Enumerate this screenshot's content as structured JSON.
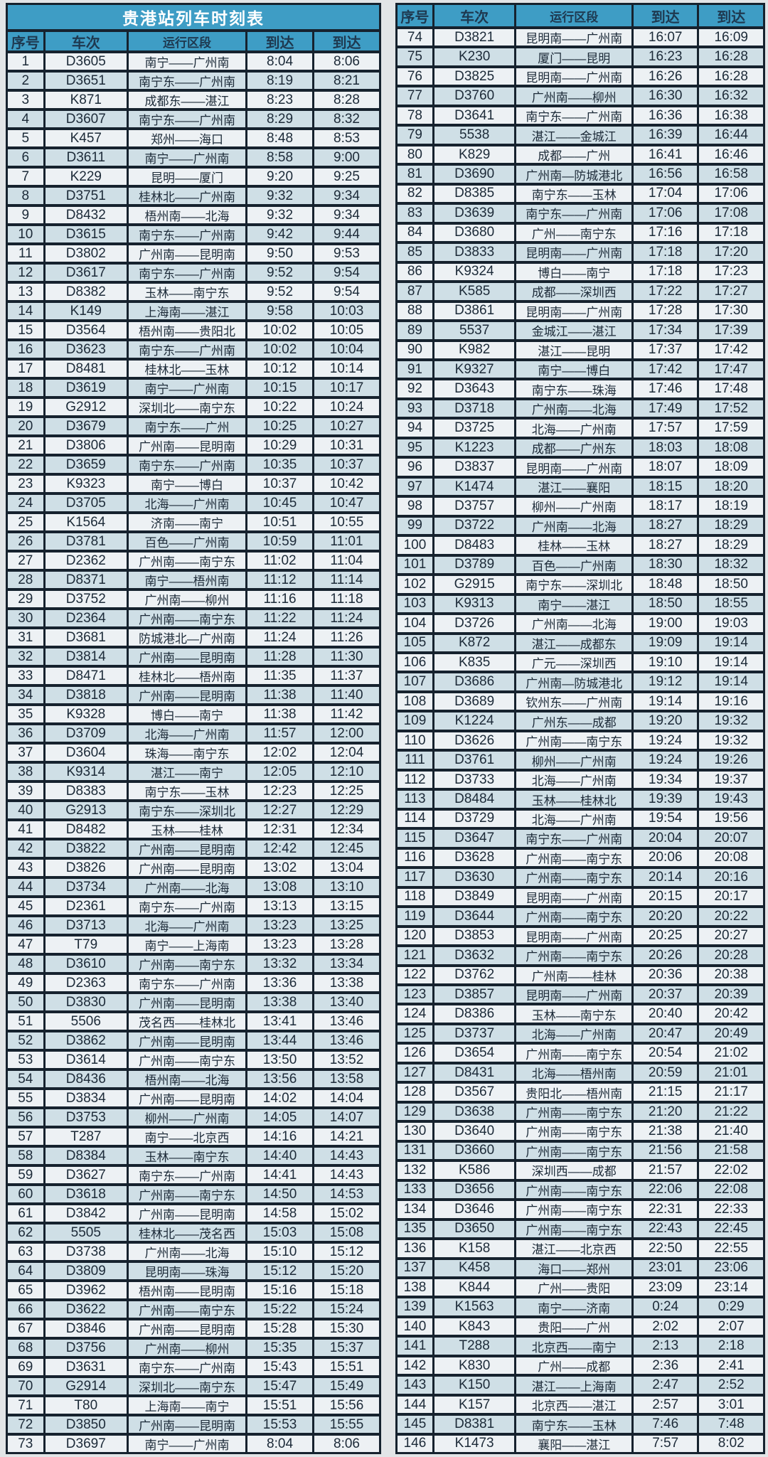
{
  "title": "贵港站列车时刻表",
  "columns": [
    "序号",
    "车次",
    "运行区段",
    "到达",
    "到达"
  ],
  "colors": {
    "header_blue": "#3e9dc5",
    "row_light": "#edf1f4",
    "row_alt": "#cfdfe6",
    "border_dark": "#16222e",
    "text_dark": "#1c2a38",
    "title_text": "#ffffff"
  },
  "left_table": {
    "rows": [
      [
        "1",
        "D3605",
        "南宁——广州南",
        "8:04",
        "8:06"
      ],
      [
        "2",
        "D3651",
        "南宁东——广州南",
        "8:19",
        "8:21"
      ],
      [
        "3",
        "K871",
        "成都东——湛江",
        "8:23",
        "8:28"
      ],
      [
        "4",
        "D3607",
        "南宁东——广州南",
        "8:29",
        "8:32"
      ],
      [
        "5",
        "K457",
        "郑州——海口",
        "8:48",
        "8:53"
      ],
      [
        "6",
        "D3611",
        "南宁——广州南",
        "8:58",
        "9:00"
      ],
      [
        "7",
        "K229",
        "昆明——厦门",
        "9:20",
        "9:25"
      ],
      [
        "8",
        "D3751",
        "桂林北——广州南",
        "9:32",
        "9:34"
      ],
      [
        "9",
        "D8432",
        "梧州南——北海",
        "9:32",
        "9:34"
      ],
      [
        "10",
        "D3615",
        "南宁东——广州南",
        "9:42",
        "9:44"
      ],
      [
        "11",
        "D3802",
        "广州南——昆明南",
        "9:50",
        "9:53"
      ],
      [
        "12",
        "D3617",
        "南宁东——广州南",
        "9:52",
        "9:54"
      ],
      [
        "13",
        "D8382",
        "玉林——南宁东",
        "9:52",
        "9:54"
      ],
      [
        "14",
        "K149",
        "上海南——湛江",
        "9:58",
        "10:03"
      ],
      [
        "15",
        "D3564",
        "梧州南——贵阳北",
        "10:02",
        "10:05"
      ],
      [
        "16",
        "D3623",
        "南宁东——广州南",
        "10:02",
        "10:04"
      ],
      [
        "17",
        "D8481",
        "桂林北——玉林",
        "10:12",
        "10:14"
      ],
      [
        "18",
        "D3619",
        "南宁——广州南",
        "10:15",
        "10:17"
      ],
      [
        "19",
        "G2912",
        "深圳北——南宁东",
        "10:22",
        "10:24"
      ],
      [
        "20",
        "D3679",
        "南宁东——广州",
        "10:25",
        "10:27"
      ],
      [
        "21",
        "D3806",
        "广州南——昆明南",
        "10:29",
        "10:31"
      ],
      [
        "22",
        "D3659",
        "南宁东——广州南",
        "10:35",
        "10:37"
      ],
      [
        "23",
        "K9323",
        "南宁——博白",
        "10:37",
        "10:42"
      ],
      [
        "24",
        "D3705",
        "北海——广州南",
        "10:45",
        "10:47"
      ],
      [
        "25",
        "K1564",
        "济南——南宁",
        "10:51",
        "10:55"
      ],
      [
        "26",
        "D3781",
        "百色——广州南",
        "10:59",
        "11:01"
      ],
      [
        "27",
        "D2362",
        "广州南——南宁东",
        "11:02",
        "11:04"
      ],
      [
        "28",
        "D8371",
        "南宁——梧州南",
        "11:12",
        "11:14"
      ],
      [
        "29",
        "D3752",
        "广州南——柳州",
        "11:16",
        "11:18"
      ],
      [
        "30",
        "D2364",
        "广州南——南宁东",
        "11:22",
        "11:24"
      ],
      [
        "31",
        "D3681",
        "防城港北—广州南",
        "11:24",
        "11:26"
      ],
      [
        "32",
        "D3814",
        "广州南——昆明南",
        "11:28",
        "11:30"
      ],
      [
        "33",
        "D8471",
        "桂林北——梧州南",
        "11:35",
        "11:37"
      ],
      [
        "34",
        "D3818",
        "广州南——昆明南",
        "11:38",
        "11:40"
      ],
      [
        "35",
        "K9328",
        "博白——南宁",
        "11:38",
        "11:42"
      ],
      [
        "36",
        "D3709",
        "北海——广州南",
        "11:57",
        "12:00"
      ],
      [
        "37",
        "D3604",
        "珠海——南宁东",
        "12:02",
        "12:04"
      ],
      [
        "38",
        "K9314",
        "湛江——南宁",
        "12:05",
        "12:10"
      ],
      [
        "39",
        "D8383",
        "南宁东——玉林",
        "12:23",
        "12:25"
      ],
      [
        "40",
        "G2913",
        "南宁东——深圳北",
        "12:27",
        "12:29"
      ],
      [
        "41",
        "D8482",
        "玉林——桂林",
        "12:31",
        "12:34"
      ],
      [
        "42",
        "D3822",
        "广州南——昆明南",
        "12:42",
        "12:45"
      ],
      [
        "43",
        "D3826",
        "广州南——昆明南",
        "13:02",
        "13:04"
      ],
      [
        "44",
        "D3734",
        "广州南——北海",
        "13:08",
        "13:10"
      ],
      [
        "45",
        "D2361",
        "南宁东——广州南",
        "13:13",
        "13:15"
      ],
      [
        "46",
        "D3713",
        "北海——广州南",
        "13:23",
        "13:25"
      ],
      [
        "47",
        "T79",
        "南宁——上海南",
        "13:23",
        "13:28"
      ],
      [
        "48",
        "D3610",
        "广州南——南宁东",
        "13:32",
        "13:34"
      ],
      [
        "49",
        "D2363",
        "南宁东——广州南",
        "13:36",
        "13:38"
      ],
      [
        "50",
        "D3830",
        "广州南——昆明南",
        "13:38",
        "13:40"
      ],
      [
        "51",
        "5506",
        "茂名西——桂林北",
        "13:41",
        "13:46"
      ],
      [
        "52",
        "D3862",
        "广州南——昆明南",
        "13:44",
        "13:46"
      ],
      [
        "53",
        "D3614",
        "广州南——南宁东",
        "13:50",
        "13:52"
      ],
      [
        "54",
        "D8436",
        "梧州南——北海",
        "13:56",
        "13:58"
      ],
      [
        "55",
        "D3834",
        "广州南——昆明南",
        "14:02",
        "14:04"
      ],
      [
        "56",
        "D3753",
        "柳州——广州南",
        "14:05",
        "14:07"
      ],
      [
        "57",
        "T287",
        "南宁——北京西",
        "14:16",
        "14:21"
      ],
      [
        "58",
        "D8384",
        "玉林——南宁东",
        "14:40",
        "14:43"
      ],
      [
        "59",
        "D3627",
        "南宁东——广州南",
        "14:41",
        "14:43"
      ],
      [
        "60",
        "D3618",
        "广州南——南宁东",
        "14:50",
        "14:53"
      ],
      [
        "61",
        "D3842",
        "广州南——昆明南",
        "14:58",
        "15:02"
      ],
      [
        "62",
        "5505",
        "桂林北——茂名西",
        "15:03",
        "15:08"
      ],
      [
        "63",
        "D3738",
        "广州南——北海",
        "15:10",
        "15:12"
      ],
      [
        "64",
        "D3809",
        "昆明南——珠海",
        "15:12",
        "15:20"
      ],
      [
        "65",
        "D3962",
        "梧州南——昆明南",
        "15:16",
        "15:18"
      ],
      [
        "66",
        "D3622",
        "广州南——南宁东",
        "15:22",
        "15:24"
      ],
      [
        "67",
        "D3846",
        "广州南——昆明南",
        "15:28",
        "15:30"
      ],
      [
        "68",
        "D3756",
        "广州南——柳州",
        "15:35",
        "15:37"
      ],
      [
        "69",
        "D3631",
        "南宁东——广州南",
        "15:43",
        "15:51"
      ],
      [
        "70",
        "G2914",
        "深圳北——南宁东",
        "15:47",
        "15:49"
      ],
      [
        "71",
        "T80",
        "上海南——南宁",
        "15:51",
        "15:56"
      ],
      [
        "72",
        "D3850",
        "广州南——昆明南",
        "15:53",
        "15:55"
      ],
      [
        "73",
        "D3697",
        "南宁——广州南",
        "8:04",
        "8:06"
      ]
    ]
  },
  "right_table": {
    "rows": [
      [
        "74",
        "D3821",
        "昆明南——广州南",
        "16:07",
        "16:09"
      ],
      [
        "75",
        "K230",
        "厦门——昆明",
        "16:23",
        "16:28"
      ],
      [
        "76",
        "D3825",
        "昆明南——广州南",
        "16:26",
        "16:28"
      ],
      [
        "77",
        "D3760",
        "广州南——柳州",
        "16:30",
        "16:32"
      ],
      [
        "78",
        "D3641",
        "南宁东——广州南",
        "16:36",
        "16:38"
      ],
      [
        "79",
        "5538",
        "湛江——金城江",
        "16:39",
        "16:44"
      ],
      [
        "80",
        "K829",
        "成都——广州",
        "16:41",
        "16:46"
      ],
      [
        "81",
        "D3690",
        "广州南—防城港北",
        "16:56",
        "16:58"
      ],
      [
        "82",
        "D8385",
        "南宁东——玉林",
        "17:04",
        "17:06"
      ],
      [
        "83",
        "D3639",
        "南宁东——广州南",
        "17:06",
        "17:08"
      ],
      [
        "84",
        "D3680",
        "广州——南宁东",
        "17:16",
        "17:18"
      ],
      [
        "85",
        "D3833",
        "昆明南——广州南",
        "17:18",
        "17:20"
      ],
      [
        "86",
        "K9324",
        "博白——南宁",
        "17:18",
        "17:23"
      ],
      [
        "87",
        "K585",
        "成都——深圳西",
        "17:22",
        "17:27"
      ],
      [
        "88",
        "D3861",
        "昆明南——广州南",
        "17:28",
        "17:30"
      ],
      [
        "89",
        "5537",
        "金城江——湛江",
        "17:34",
        "17:39"
      ],
      [
        "90",
        "K982",
        "湛江——昆明",
        "17:37",
        "17:42"
      ],
      [
        "91",
        "K9327",
        "南宁——博白",
        "17:42",
        "17:47"
      ],
      [
        "92",
        "D3643",
        "南宁东——珠海",
        "17:46",
        "17:48"
      ],
      [
        "93",
        "D3718",
        "广州南——北海",
        "17:49",
        "17:52"
      ],
      [
        "94",
        "D3725",
        "北海——广州南",
        "17:57",
        "17:59"
      ],
      [
        "95",
        "K1223",
        "成都——广州东",
        "18:03",
        "18:08"
      ],
      [
        "96",
        "D3837",
        "昆明南——广州南",
        "18:07",
        "18:09"
      ],
      [
        "97",
        "K1474",
        "湛江——襄阳",
        "18:15",
        "18:20"
      ],
      [
        "98",
        "D3757",
        "柳州——广州南",
        "18:17",
        "18:19"
      ],
      [
        "99",
        "D3722",
        "广州南——北海",
        "18:27",
        "18:29"
      ],
      [
        "100",
        "D8483",
        "桂林——玉林",
        "18:27",
        "18:29"
      ],
      [
        "101",
        "D3789",
        "百色——广州南",
        "18:30",
        "18:32"
      ],
      [
        "102",
        "G2915",
        "南宁东——深圳北",
        "18:48",
        "18:50"
      ],
      [
        "103",
        "K9313",
        "南宁——湛江",
        "18:50",
        "18:55"
      ],
      [
        "104",
        "D3726",
        "广州南——北海",
        "19:00",
        "19:03"
      ],
      [
        "105",
        "K872",
        "湛江——成都东",
        "19:09",
        "19:14"
      ],
      [
        "106",
        "K835",
        "广元——深圳西",
        "19:10",
        "19:14"
      ],
      [
        "107",
        "D3686",
        "广州南—防城港北",
        "19:12",
        "19:14"
      ],
      [
        "108",
        "D3689",
        "钦州东——广州南",
        "19:14",
        "19:16"
      ],
      [
        "109",
        "K1224",
        "广州东——成都",
        "19:20",
        "19:32"
      ],
      [
        "110",
        "D3626",
        "广州南——南宁东",
        "19:24",
        "19:32"
      ],
      [
        "111",
        "D3761",
        "柳州——广州南",
        "19:24",
        "19:26"
      ],
      [
        "112",
        "D3733",
        "北海——广州南",
        "19:34",
        "19:37"
      ],
      [
        "113",
        "D8484",
        "玉林——桂林北",
        "19:39",
        "19:43"
      ],
      [
        "114",
        "D3729",
        "北海——广州南",
        "19:54",
        "19:56"
      ],
      [
        "115",
        "D3647",
        "南宁东——广州南",
        "20:04",
        "20:07"
      ],
      [
        "116",
        "D3628",
        "广州南——南宁东",
        "20:06",
        "20:08"
      ],
      [
        "117",
        "D3630",
        "广州南——南宁东",
        "20:14",
        "20:16"
      ],
      [
        "118",
        "D3849",
        "昆明南——广州南",
        "20:15",
        "20:17"
      ],
      [
        "119",
        "D3644",
        "广州南——南宁东",
        "20:20",
        "20:22"
      ],
      [
        "120",
        "D3853",
        "昆明南——广州南",
        "20:25",
        "20:27"
      ],
      [
        "121",
        "D3632",
        "广州南——南宁东",
        "20:26",
        "20:28"
      ],
      [
        "122",
        "D3762",
        "广州南——桂林",
        "20:36",
        "20:38"
      ],
      [
        "123",
        "D3857",
        "昆明南——广州南",
        "20:37",
        "20:39"
      ],
      [
        "124",
        "D8386",
        "玉林——南宁东",
        "20:40",
        "20:42"
      ],
      [
        "125",
        "D3737",
        "北海——广州南",
        "20:47",
        "20:49"
      ],
      [
        "126",
        "D3654",
        "广州南——南宁东",
        "20:54",
        "21:02"
      ],
      [
        "127",
        "D8431",
        "北海——梧州南",
        "20:59",
        "21:01"
      ],
      [
        "128",
        "D3567",
        "贵阳北——梧州南",
        "21:15",
        "21:17"
      ],
      [
        "129",
        "D3638",
        "广州南——南宁东",
        "21:20",
        "21:22"
      ],
      [
        "130",
        "D3640",
        "广州南——南宁东",
        "21:38",
        "21:40"
      ],
      [
        "131",
        "D3660",
        "广州南——南宁东",
        "21:56",
        "21:58"
      ],
      [
        "132",
        "K586",
        "深圳西——成都",
        "21:57",
        "22:02"
      ],
      [
        "133",
        "D3656",
        "广州南——南宁东",
        "22:06",
        "22:08"
      ],
      [
        "134",
        "D3646",
        "广州南——南宁东",
        "22:31",
        "22:33"
      ],
      [
        "135",
        "D3650",
        "广州南——南宁东",
        "22:43",
        "22:45"
      ],
      [
        "136",
        "K158",
        "湛江——北京西",
        "22:50",
        "22:55"
      ],
      [
        "137",
        "K458",
        "海口——郑州",
        "23:01",
        "23:06"
      ],
      [
        "138",
        "K844",
        "广州——贵阳",
        "23:09",
        "23:14"
      ],
      [
        "139",
        "K1563",
        "南宁——济南",
        "0:24",
        "0:29"
      ],
      [
        "140",
        "K843",
        "贵阳——广州",
        "2:02",
        "2:07"
      ],
      [
        "141",
        "T288",
        "北京西——南宁",
        "2:13",
        "2:18"
      ],
      [
        "142",
        "K830",
        "广州——成都",
        "2:36",
        "2:41"
      ],
      [
        "143",
        "K150",
        "湛江——上海南",
        "2:47",
        "2:52"
      ],
      [
        "144",
        "K157",
        "北京西——湛江",
        "2:57",
        "3:01"
      ],
      [
        "145",
        "D8381",
        "南宁东——玉林",
        "7:46",
        "7:48"
      ],
      [
        "146",
        "K1473",
        "襄阳——湛江",
        "7:57",
        "8:02"
      ]
    ]
  }
}
